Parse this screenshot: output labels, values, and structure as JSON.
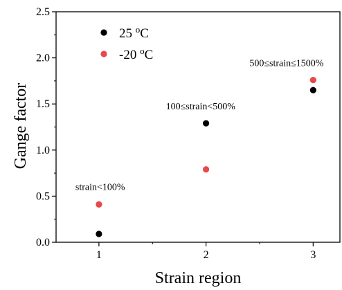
{
  "chart_data": {
    "type": "scatter",
    "xlabel": "Strain region",
    "ylabel": "Gange factor",
    "xlim": [
      0.6,
      3.25
    ],
    "ylim": [
      0,
      2.5
    ],
    "xticks": [
      "1",
      "2",
      "3"
    ],
    "yticks": [
      "0.0",
      "0.5",
      "1.0",
      "1.5",
      "2.0",
      "2.5"
    ],
    "grid": false,
    "legend_placement": "top-left",
    "series": [
      {
        "name": "25 oC",
        "color": "#000000",
        "x": [
          1,
          2,
          3
        ],
        "y": [
          0.09,
          1.29,
          1.65
        ]
      },
      {
        "name": "-20 oC",
        "color": "#e8484b",
        "x": [
          1,
          2,
          3
        ],
        "y": [
          0.41,
          0.79,
          1.76
        ]
      }
    ],
    "annotations": [
      {
        "text": "strain<100%",
        "x": 1,
        "y": 0.41
      },
      {
        "text": "100≤strain<500%",
        "x": 2,
        "y": 1.29
      },
      {
        "text": "500≤strain≤1500%",
        "x": 3,
        "y": 1.76
      }
    ]
  }
}
